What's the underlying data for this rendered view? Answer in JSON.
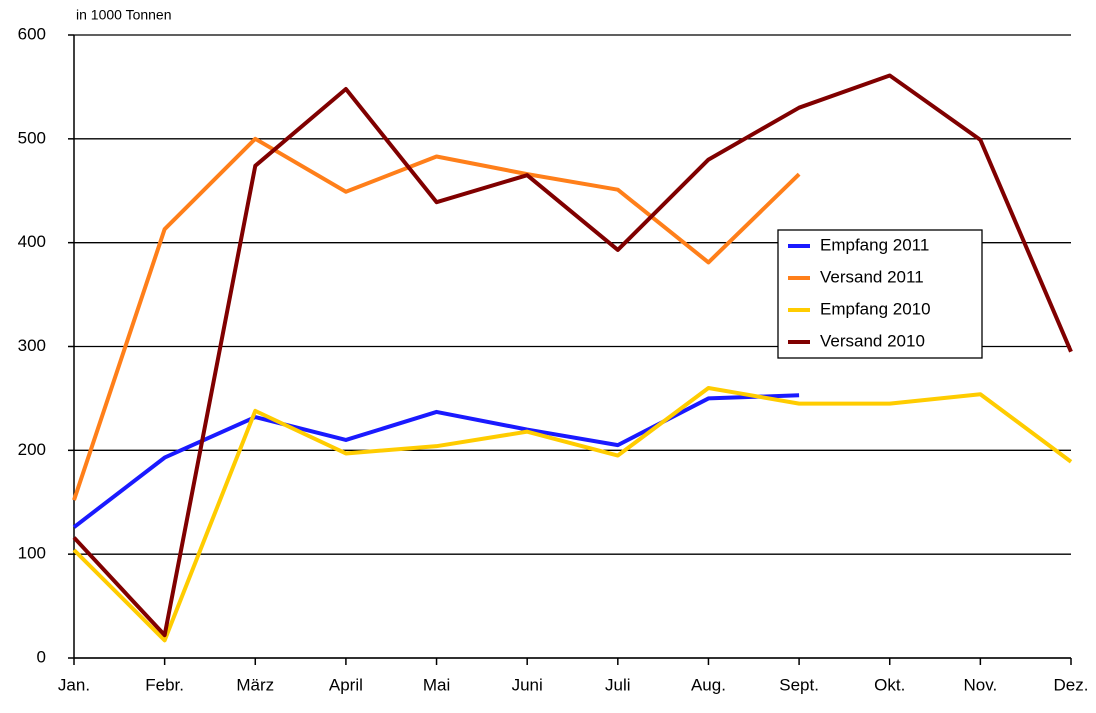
{
  "chart_data": {
    "type": "line",
    "y_label": "in 1000 Tonnen",
    "categories": [
      "Jan.",
      "Febr.",
      "März",
      "April",
      "Mai",
      "Juni",
      "Juli",
      "Aug.",
      "Sept.",
      "Okt.",
      "Nov.",
      "Dez."
    ],
    "series": [
      {
        "name": "Empfang 2011",
        "color": "#1a1aff",
        "values": [
          126,
          193,
          232,
          210,
          237,
          220,
          205,
          250,
          253,
          null,
          null,
          null
        ]
      },
      {
        "name": "Versand 2011",
        "color": "#ff7f1a",
        "values": [
          152,
          413,
          500,
          449,
          483,
          466,
          451,
          381,
          466,
          null,
          null,
          null
        ]
      },
      {
        "name": "Empfang 2010",
        "color": "#ffcc00",
        "values": [
          104,
          17,
          238,
          197,
          204,
          218,
          195,
          260,
          245,
          245,
          254,
          189
        ]
      },
      {
        "name": "Versand 2010",
        "color": "#800000",
        "values": [
          116,
          22,
          474,
          548,
          439,
          465,
          393,
          480,
          530,
          561,
          499,
          295
        ]
      }
    ],
    "ylim": [
      0,
      600
    ],
    "yticks": [
      0,
      100,
      200,
      300,
      400,
      500,
      600
    ],
    "grid": true,
    "legend": "right"
  }
}
